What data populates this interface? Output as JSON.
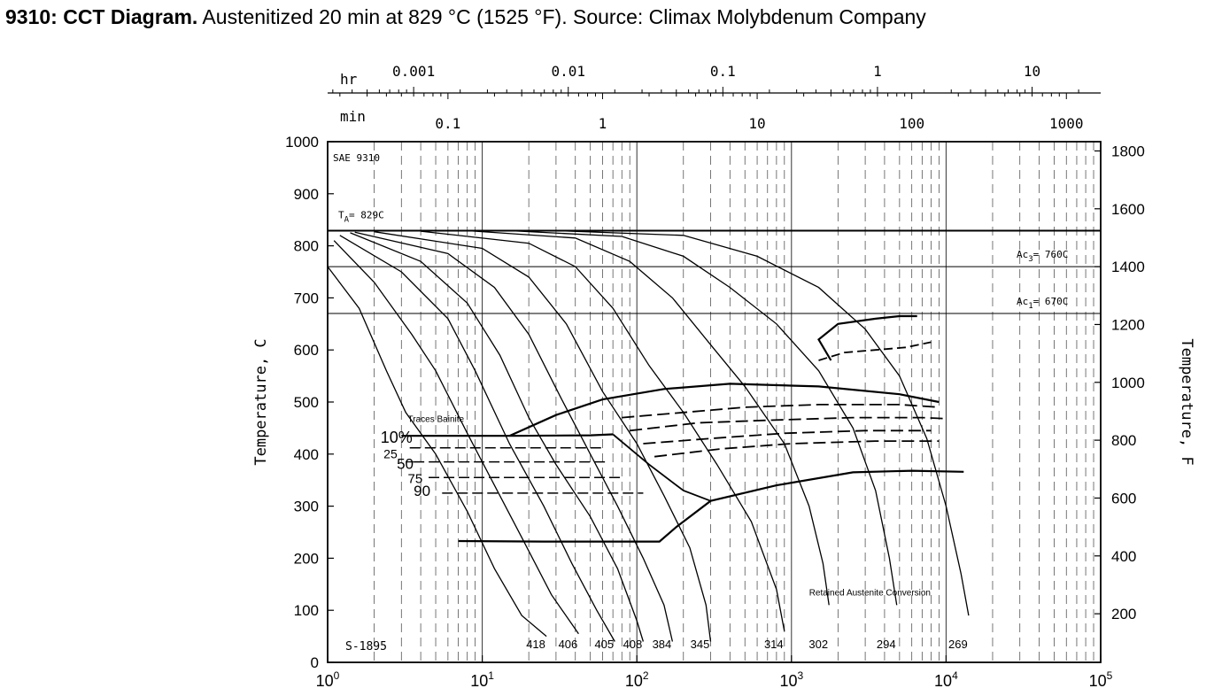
{
  "caption": {
    "bold": "9310: CCT Diagram.",
    "text": " Austenitized 20 min at 829 °C (1525 °F). Source: Climax Molybdenum Company"
  },
  "chart_data": {
    "type": "line",
    "x_scale": "log",
    "xlim": [
      1,
      100000
    ],
    "ylim": [
      0,
      1000
    ],
    "x_ticks": [
      {
        "v": 1,
        "m": "10",
        "e": "0"
      },
      {
        "v": 10,
        "m": "10",
        "e": "1"
      },
      {
        "v": 100,
        "m": "10",
        "e": "2"
      },
      {
        "v": 1000,
        "m": "10",
        "e": "3"
      },
      {
        "v": 10000,
        "m": "10",
        "e": "4"
      },
      {
        "v": 100000,
        "m": "10",
        "e": "5"
      }
    ],
    "y_ticks": [
      0,
      100,
      200,
      300,
      400,
      500,
      600,
      700,
      800,
      900,
      1000
    ],
    "ylabel": "Temperature, C",
    "y2label": "Temperature, F",
    "y2_ticks": [
      {
        "label": "200",
        "F": 200
      },
      {
        "label": "400",
        "F": 400
      },
      {
        "label": "600",
        "F": 600
      },
      {
        "label": "800",
        "F": 800
      },
      {
        "label": "1000",
        "F": 1000
      },
      {
        "label": "1200",
        "F": 1200
      },
      {
        "label": "1400",
        "F": 1400
      },
      {
        "label": "1600",
        "F": 1600
      },
      {
        "label": "1800",
        "F": 1800
      }
    ],
    "top_min_label": "min",
    "top_min_ticks": [
      {
        "label": "0.1",
        "min": 0.1
      },
      {
        "label": "1",
        "min": 1
      },
      {
        "label": "10",
        "min": 10
      },
      {
        "label": "100",
        "min": 100
      },
      {
        "label": "1000",
        "min": 1000
      }
    ],
    "top_hr_label": "hr",
    "top_hr_ticks": [
      {
        "label": "0.001",
        "hr": 0.001
      },
      {
        "label": "0.01",
        "hr": 0.01
      },
      {
        "label": "0.1",
        "hr": 0.1
      },
      {
        "label": "1",
        "hr": 1
      },
      {
        "label": "10",
        "hr": 10
      }
    ],
    "reference_lines": [
      {
        "y": 829,
        "label": "T",
        "sub": "A",
        "post": "= 829C"
      },
      {
        "y": 760,
        "label": "Ac",
        "sub": "3",
        "post": "= 760C"
      },
      {
        "y": 670,
        "label": "Ac",
        "sub": "1",
        "post": "= 670C"
      }
    ],
    "annotations": {
      "steel": "SAE 9310",
      "specimen": "S-1895",
      "traces_bainite": "Traces Bainite",
      "retained_austenite": "Retained Austenite Conversion"
    },
    "transformation_labels": [
      "10%",
      "25",
      "50",
      "75",
      "90"
    ],
    "cooling_curves": [
      {
        "hardness": "418",
        "points": [
          [
            1,
            760
          ],
          [
            1.6,
            680
          ],
          [
            2.4,
            560
          ],
          [
            3.2,
            480
          ],
          [
            5,
            400
          ],
          [
            8,
            290
          ],
          [
            12,
            180
          ],
          [
            18,
            90
          ],
          [
            26,
            50
          ]
        ]
      },
      {
        "hardness": "406",
        "points": [
          [
            1.1,
            810
          ],
          [
            2,
            730
          ],
          [
            3.5,
            630
          ],
          [
            5,
            560
          ],
          [
            8,
            440
          ],
          [
            12,
            340
          ],
          [
            18,
            240
          ],
          [
            28,
            130
          ],
          [
            42,
            55
          ]
        ]
      },
      {
        "hardness": "405",
        "points": [
          [
            1.2,
            820
          ],
          [
            3,
            750
          ],
          [
            6,
            660
          ],
          [
            9,
            560
          ],
          [
            15,
            420
          ],
          [
            25,
            300
          ],
          [
            38,
            190
          ],
          [
            55,
            100
          ],
          [
            72,
            40
          ]
        ]
      },
      {
        "hardness": "408",
        "points": [
          [
            1.4,
            825
          ],
          [
            4,
            770
          ],
          [
            8,
            690
          ],
          [
            13,
            590
          ],
          [
            20,
            470
          ],
          [
            30,
            380
          ],
          [
            50,
            280
          ],
          [
            75,
            180
          ],
          [
            100,
            80
          ],
          [
            110,
            40
          ]
        ]
      },
      {
        "hardness": "384",
        "points": [
          [
            1.5,
            826
          ],
          [
            6,
            785
          ],
          [
            12,
            720
          ],
          [
            20,
            630
          ],
          [
            32,
            510
          ],
          [
            50,
            400
          ],
          [
            75,
            300
          ],
          [
            110,
            200
          ],
          [
            150,
            110
          ],
          [
            170,
            40
          ]
        ]
      },
      {
        "hardness": "345",
        "points": [
          [
            2,
            827
          ],
          [
            10,
            795
          ],
          [
            20,
            740
          ],
          [
            35,
            650
          ],
          [
            60,
            520
          ],
          [
            100,
            420
          ],
          [
            150,
            320
          ],
          [
            220,
            220
          ],
          [
            280,
            110
          ],
          [
            300,
            40
          ]
        ]
      },
      {
        "hardness": "314",
        "points": [
          [
            4,
            828
          ],
          [
            20,
            805
          ],
          [
            40,
            760
          ],
          [
            70,
            680
          ],
          [
            120,
            570
          ],
          [
            200,
            480
          ],
          [
            330,
            380
          ],
          [
            550,
            270
          ],
          [
            800,
            140
          ],
          [
            900,
            60
          ]
        ]
      },
      {
        "hardness": "302",
        "points": [
          [
            8,
            829
          ],
          [
            40,
            815
          ],
          [
            90,
            770
          ],
          [
            170,
            700
          ],
          [
            300,
            610
          ],
          [
            500,
            530
          ],
          [
            900,
            420
          ],
          [
            1300,
            300
          ],
          [
            1600,
            190
          ],
          [
            1750,
            110
          ]
        ]
      },
      {
        "hardness": "294",
        "points": [
          [
            15,
            829
          ],
          [
            80,
            818
          ],
          [
            200,
            780
          ],
          [
            400,
            720
          ],
          [
            800,
            650
          ],
          [
            1500,
            560
          ],
          [
            2500,
            450
          ],
          [
            3500,
            330
          ],
          [
            4300,
            200
          ],
          [
            4800,
            110
          ]
        ]
      },
      {
        "hardness": "269",
        "points": [
          [
            30,
            829
          ],
          [
            200,
            820
          ],
          [
            600,
            780
          ],
          [
            1500,
            720
          ],
          [
            3000,
            640
          ],
          [
            5000,
            550
          ],
          [
            7500,
            430
          ],
          [
            10000,
            300
          ],
          [
            12500,
            170
          ],
          [
            14000,
            90
          ]
        ]
      }
    ],
    "zones": {
      "bainite_start": [
        [
          3,
          435
        ],
        [
          16,
          435
        ],
        [
          50,
          436
        ],
        [
          70,
          438
        ]
      ],
      "bainite_cut": [
        [
          70,
          438
        ],
        [
          120,
          380
        ],
        [
          200,
          330
        ],
        [
          300,
          310
        ]
      ],
      "bainite_nose": [
        [
          15,
          435
        ],
        [
          30,
          475
        ],
        [
          60,
          505
        ],
        [
          150,
          525
        ],
        [
          400,
          535
        ],
        [
          1500,
          530
        ],
        [
          5000,
          515
        ],
        [
          9000,
          500
        ]
      ],
      "martensite_start": [
        [
          7,
          233
        ],
        [
          25,
          232
        ],
        [
          80,
          232
        ],
        [
          140,
          232
        ],
        [
          180,
          260
        ],
        [
          300,
          310
        ],
        [
          800,
          340
        ],
        [
          2500,
          365
        ],
        [
          6000,
          368
        ],
        [
          13000,
          366
        ]
      ],
      "ferrite_start": [
        [
          1800,
          580
        ],
        [
          1500,
          620
        ],
        [
          2000,
          650
        ],
        [
          3500,
          660
        ],
        [
          5000,
          665
        ],
        [
          6500,
          665
        ]
      ],
      "ferrite_end": [
        [
          1500,
          580
        ],
        [
          2200,
          595
        ],
        [
          3500,
          600
        ],
        [
          5500,
          605
        ],
        [
          8000,
          615
        ]
      ],
      "pct_lines": [
        {
          "y": 412,
          "from": 3.4,
          "to": 60
        },
        {
          "y": 385,
          "from": 3.6,
          "to": 65
        },
        {
          "y": 355,
          "from": 4.5,
          "to": 80
        },
        {
          "y": 325,
          "from": 5.5,
          "to": 110
        }
      ],
      "dashed_in_zone": [
        [
          [
            80,
            470
          ],
          [
            200,
            480
          ],
          [
            500,
            490
          ],
          [
            1500,
            495
          ],
          [
            5000,
            495
          ],
          [
            9000,
            490
          ]
        ],
        [
          [
            90,
            445
          ],
          [
            250,
            460
          ],
          [
            700,
            465
          ],
          [
            2500,
            470
          ],
          [
            7000,
            470
          ],
          [
            10000,
            468
          ]
        ],
        [
          [
            110,
            420
          ],
          [
            300,
            430
          ],
          [
            900,
            440
          ],
          [
            3000,
            445
          ],
          [
            8000,
            445
          ]
        ],
        [
          [
            130,
            395
          ],
          [
            350,
            410
          ],
          [
            1000,
            420
          ],
          [
            3500,
            425
          ],
          [
            9000,
            425
          ]
        ]
      ]
    }
  }
}
